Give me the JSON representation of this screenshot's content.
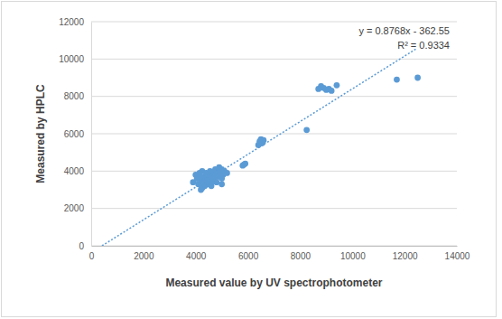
{
  "chart_data": {
    "type": "scatter",
    "x_label": "Measured value by UV spectrophotometer",
    "y_label": "Measured by HPLC",
    "annotations": [
      "y = 0.8768x - 362.55",
      "R² = 0.9334"
    ],
    "color": "#5b9bd5",
    "marker": "circle",
    "grid": true,
    "xlim": [
      0,
      14000
    ],
    "ylim": [
      0,
      12000
    ],
    "xticks": [
      0,
      2000,
      4000,
      6000,
      8000,
      10000,
      12000,
      14000
    ],
    "yticks": [
      0,
      2000,
      4000,
      6000,
      8000,
      10000,
      12000
    ],
    "x": [
      3900,
      4000,
      4050,
      4100,
      4150,
      4200,
      4200,
      4250,
      4300,
      4300,
      4350,
      4400,
      4400,
      4450,
      4500,
      4500,
      4550,
      4600,
      4600,
      4650,
      4700,
      4750,
      4800,
      4800,
      4850,
      4900,
      4950,
      5000,
      5000,
      5050,
      5100,
      5200,
      4250,
      4350,
      4450,
      4150,
      4600,
      4700,
      5000,
      4900,
      5800,
      5900,
      5850,
      6400,
      6450,
      6500,
      6550,
      6600,
      8250,
      8700,
      8800,
      8900,
      9000,
      9100,
      9200,
      9400,
      11700,
      12500
    ],
    "values": [
      3400,
      3800,
      3600,
      3300,
      3900,
      3000,
      3500,
      4000,
      3200,
      3700,
      3400,
      3600,
      3900,
      3300,
      3800,
      3500,
      4000,
      3700,
      3200,
      3900,
      3600,
      4100,
      3800,
      3400,
      3700,
      4000,
      3900,
      4100,
      3300,
      3800,
      4000,
      3900,
      3100,
      3200,
      3500,
      3700,
      3400,
      3800,
      3600,
      4200,
      4300,
      4400,
      4350,
      5400,
      5600,
      5700,
      5500,
      5650,
      6200,
      8400,
      8550,
      8450,
      8350,
      8400,
      8300,
      8600,
      8900,
      9000
    ],
    "trendline": {
      "x": [
        413.5,
        12450
      ],
      "values": [
        0,
        10553
      ],
      "line_style": "dotted",
      "color": "#5b9bd5"
    }
  }
}
